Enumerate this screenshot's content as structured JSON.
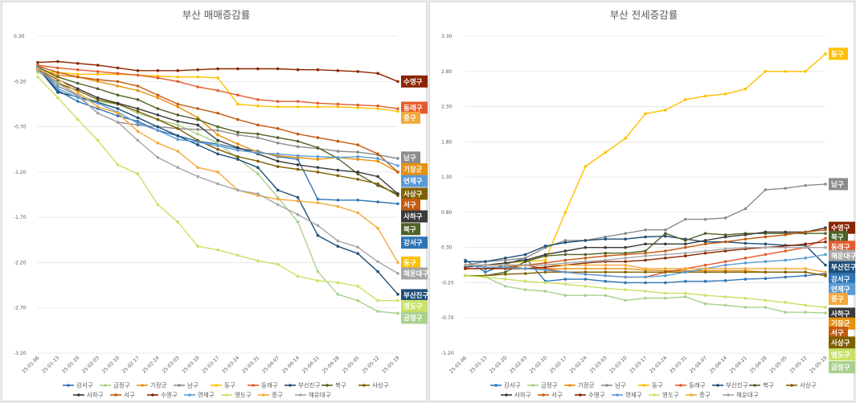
{
  "weeks": [
    "25-01-06",
    "25-01-13",
    "25-01-20",
    "25-02-03",
    "25-02-10",
    "25-02-17",
    "25-02-24",
    "25-03-03",
    "25-03-10",
    "25-03-17",
    "25-03-24",
    "25-03-31",
    "25-04-07",
    "25-04-14",
    "25-04-21",
    "25-04-28",
    "25-05-05",
    "25-05-12",
    "25-05-19"
  ],
  "legend_order": [
    "강서구",
    "금정구",
    "기장군",
    "남구",
    "동구",
    "동래구",
    "부산진구",
    "북구",
    "사상구",
    "사하구",
    "서구",
    "수영구",
    "연제구",
    "영도구",
    "중구",
    "해운대구"
  ],
  "colors": {
    "강서구": "#2e75b6",
    "금정구": "#a9d18e",
    "기장군": "#e8900c",
    "남구": "#8c8c8c",
    "동구": "#ffc000",
    "동래구": "#e35b2b",
    "부산진구": "#1f4e79",
    "북구": "#4f6228",
    "사상구": "#7f6000",
    "사하구": "#3a3a3a",
    "서구": "#c55a11",
    "수영구": "#8b2500",
    "연제구": "#5b9bd5",
    "영도구": "#c9e265",
    "중구": "#f4a93b",
    "해운대구": "#a6a6a6"
  },
  "chart_data": [
    {
      "type": "line",
      "title": "부산 매매증감률",
      "ylim": [
        -3.2,
        0.3
      ],
      "yticks": [
        "0.30",
        "-0.20",
        "-0.70",
        "-1.20",
        "-1.70",
        "-2.20",
        "-2.70",
        "-3.20"
      ],
      "grid": true,
      "legend_position": "bottom",
      "series": [
        {
          "name": "강서구",
          "values": [
            -0.05,
            -0.3,
            -0.42,
            -0.5,
            -0.58,
            -0.64,
            -0.74,
            -0.8,
            -0.86,
            -0.89,
            -0.94,
            -0.97,
            -1.03,
            -1.06,
            -1.5,
            -1.51,
            -1.51,
            -1.53,
            -1.55
          ]
        },
        {
          "name": "금정구",
          "values": [
            -0.1,
            -0.2,
            -0.35,
            -0.42,
            -0.45,
            -0.55,
            -0.62,
            -0.68,
            -0.78,
            -0.88,
            -1.05,
            -1.22,
            -1.48,
            -1.75,
            -2.3,
            -2.55,
            -2.62,
            -2.74,
            -2.76
          ]
        },
        {
          "name": "기장군",
          "values": [
            -0.05,
            -0.13,
            -0.15,
            -0.2,
            -0.25,
            -0.3,
            -0.38,
            -0.48,
            -0.6,
            -0.79,
            -0.89,
            -0.98,
            -1.02,
            -1.04,
            -1.06,
            -1.04,
            -1.06,
            -1.08,
            -1.2
          ]
        },
        {
          "name": "남구",
          "values": [
            -0.06,
            -0.25,
            -0.36,
            -0.55,
            -0.65,
            -0.68,
            -0.7,
            -0.72,
            -0.73,
            -0.74,
            -0.79,
            -0.82,
            -0.88,
            -0.92,
            -0.94,
            -0.97,
            -0.98,
            -1.01,
            -1.05
          ]
        },
        {
          "name": "동구",
          "values": [
            -0.08,
            -0.1,
            -0.12,
            -0.12,
            -0.12,
            -0.13,
            -0.14,
            -0.15,
            -0.15,
            -0.16,
            -0.45,
            -0.47,
            -0.48,
            -0.48,
            -0.48,
            -0.48,
            -0.49,
            -0.5,
            -0.53
          ]
        },
        {
          "name": "동래구",
          "values": [
            -0.02,
            -0.05,
            -0.07,
            -0.09,
            -0.11,
            -0.13,
            -0.16,
            -0.2,
            -0.26,
            -0.3,
            -0.35,
            -0.4,
            -0.42,
            -0.42,
            -0.44,
            -0.45,
            -0.46,
            -0.47,
            -0.5
          ]
        },
        {
          "name": "부산진구",
          "values": [
            -0.05,
            -0.32,
            -0.37,
            -0.43,
            -0.5,
            -0.6,
            -0.7,
            -0.8,
            -0.9,
            -1.0,
            -1.06,
            -1.15,
            -1.4,
            -1.48,
            -1.9,
            -2.02,
            -2.1,
            -2.3,
            -2.55
          ]
        },
        {
          "name": "북구",
          "values": [
            -0.04,
            -0.15,
            -0.22,
            -0.28,
            -0.35,
            -0.4,
            -0.5,
            -0.57,
            -0.62,
            -0.7,
            -0.76,
            -0.78,
            -0.82,
            -0.86,
            -0.93,
            -1.05,
            -1.22,
            -1.35,
            -1.44
          ]
        },
        {
          "name": "사상구",
          "values": [
            -0.06,
            -0.22,
            -0.3,
            -0.4,
            -0.45,
            -0.53,
            -0.62,
            -0.72,
            -0.85,
            -0.95,
            -1.03,
            -1.08,
            -1.14,
            -1.17,
            -1.2,
            -1.24,
            -1.28,
            -1.33,
            -1.46
          ]
        },
        {
          "name": "사하구",
          "values": [
            -0.06,
            -0.18,
            -0.28,
            -0.38,
            -0.44,
            -0.5,
            -0.57,
            -0.64,
            -0.68,
            -0.85,
            -0.93,
            -1.0,
            -1.08,
            -1.12,
            -1.15,
            -1.18,
            -1.2,
            -1.25,
            -1.44
          ]
        },
        {
          "name": "서구",
          "values": [
            -0.03,
            -0.1,
            -0.15,
            -0.18,
            -0.2,
            -0.25,
            -0.35,
            -0.45,
            -0.5,
            -0.55,
            -0.62,
            -0.68,
            -0.72,
            -0.78,
            -0.82,
            -0.86,
            -0.9,
            -1.0,
            -1.2
          ]
        },
        {
          "name": "수영구",
          "values": [
            0.01,
            0.02,
            0.0,
            -0.02,
            -0.05,
            -0.08,
            -0.08,
            -0.08,
            -0.07,
            -0.06,
            -0.06,
            -0.06,
            -0.06,
            -0.07,
            -0.07,
            -0.08,
            -0.09,
            -0.11,
            -0.2
          ]
        },
        {
          "name": "연제구",
          "values": [
            -0.04,
            -0.28,
            -0.38,
            -0.44,
            -0.54,
            -0.66,
            -0.74,
            -0.84,
            -0.87,
            -0.91,
            -0.96,
            -0.99,
            -1.0,
            -1.02,
            -1.03,
            -1.04,
            -1.03,
            -1.05,
            -1.13
          ]
        },
        {
          "name": "영도구",
          "values": [
            -0.15,
            -0.38,
            -0.62,
            -0.85,
            -1.12,
            -1.22,
            -1.56,
            -1.75,
            -2.02,
            -2.06,
            -2.12,
            -2.18,
            -2.22,
            -2.35,
            -2.4,
            -2.42,
            -2.46,
            -2.62,
            -2.62
          ]
        },
        {
          "name": "중구",
          "values": [
            -0.06,
            -0.17,
            -0.32,
            -0.48,
            -0.55,
            -0.75,
            -0.88,
            -0.97,
            -1.15,
            -1.2,
            -1.4,
            -1.46,
            -1.5,
            -1.52,
            -1.54,
            -1.58,
            -1.65,
            -1.82,
            -2.2
          ]
        },
        {
          "name": "해운대구",
          "values": [
            -0.08,
            -0.22,
            -0.35,
            -0.55,
            -0.65,
            -0.85,
            -1.04,
            -1.15,
            -1.25,
            -1.33,
            -1.4,
            -1.44,
            -1.56,
            -1.67,
            -1.79,
            -1.96,
            -2.03,
            -2.19,
            -2.32
          ]
        }
      ],
      "end_labels": [
        {
          "name": "수영구",
          "y": -0.2
        },
        {
          "name": "동래구",
          "y": -0.49
        },
        {
          "name": "중구",
          "y": -0.6
        },
        {
          "name": "남구",
          "y": -1.04
        },
        {
          "name": "기장군",
          "y": -1.17
        },
        {
          "name": "연제구",
          "y": -1.3
        },
        {
          "name": "사상구",
          "y": -1.44
        },
        {
          "name": "서구",
          "y": -1.56
        },
        {
          "name": "사하구",
          "y": -1.69
        },
        {
          "name": "북구",
          "y": -1.83
        },
        {
          "name": "강서구",
          "y": -1.98
        },
        {
          "name": "동구",
          "y": -2.2
        },
        {
          "name": "해운대구",
          "y": -2.32
        },
        {
          "name": "부산진구",
          "y": -2.56
        },
        {
          "name": "영도구",
          "y": -2.68
        },
        {
          "name": "금정구",
          "y": -2.81
        }
      ]
    },
    {
      "type": "line",
      "title": "부산 전세증감률",
      "ylim": [
        -1.2,
        3.3
      ],
      "yticks": [
        "3.30",
        "2.80",
        "2.30",
        "1.80",
        "1.30",
        "0.80",
        "0.30",
        "-0.20",
        "-0.70",
        "-1.20"
      ],
      "grid": true,
      "legend_position": "bottom",
      "series": [
        {
          "name": "강서구",
          "values": [
            0.12,
            -0.05,
            0.06,
            0.15,
            -0.18,
            -0.15,
            -0.15,
            -0.18,
            -0.2,
            -0.2,
            -0.2,
            -0.18,
            -0.18,
            -0.17,
            -0.15,
            -0.14,
            -0.12,
            -0.1,
            -0.07
          ]
        },
        {
          "name": "금정구",
          "values": [
            -0.1,
            -0.12,
            -0.25,
            -0.3,
            -0.32,
            -0.38,
            -0.38,
            -0.38,
            -0.45,
            -0.42,
            -0.42,
            -0.4,
            -0.5,
            -0.52,
            -0.55,
            -0.55,
            -0.62,
            -0.62,
            -0.63
          ]
        },
        {
          "name": "기장군",
          "values": [
            0.05,
            0.05,
            0.05,
            0.0,
            0.0,
            0.0,
            0.0,
            0.0,
            0.0,
            -0.02,
            -0.03,
            -0.03,
            -0.03,
            -0.03,
            -0.03,
            -0.05,
            -0.05,
            -0.05,
            -0.1
          ]
        },
        {
          "name": "남구",
          "values": [
            0.05,
            0.1,
            0.12,
            0.15,
            0.3,
            0.4,
            0.4,
            0.45,
            0.5,
            0.55,
            0.55,
            0.7,
            0.7,
            0.72,
            0.85,
            1.12,
            1.14,
            1.18,
            1.2
          ]
        },
        {
          "name": "동구",
          "values": [
            0.05,
            0.05,
            0.08,
            0.1,
            0.12,
            0.8,
            1.45,
            1.65,
            1.85,
            2.2,
            2.25,
            2.4,
            2.45,
            2.48,
            2.55,
            2.8,
            2.8,
            2.8,
            3.05
          ]
        },
        {
          "name": "동래구",
          "values": [
            0.05,
            0.05,
            0.05,
            0.05,
            0.0,
            -0.05,
            -0.08,
            -0.1,
            -0.12,
            -0.12,
            -0.05,
            0.0,
            0.05,
            0.1,
            0.15,
            0.2,
            0.25,
            0.3,
            0.43
          ]
        },
        {
          "name": "부산진구",
          "values": [
            0.1,
            0.1,
            0.15,
            0.2,
            0.32,
            0.37,
            0.4,
            0.42,
            0.42,
            0.45,
            0.46,
            0.42,
            0.38,
            0.38,
            0.36,
            0.35,
            0.33,
            0.33,
            0.05
          ]
        },
        {
          "name": "북구",
          "values": [
            -0.1,
            -0.1,
            -0.05,
            0.1,
            0.18,
            0.2,
            0.2,
            0.22,
            0.22,
            0.25,
            0.5,
            0.4,
            0.5,
            0.48,
            0.5,
            0.5,
            0.5,
            0.5,
            0.5
          ]
        },
        {
          "name": "사상구",
          "values": [
            -0.1,
            -0.1,
            -0.08,
            -0.07,
            -0.05,
            -0.05,
            -0.05,
            -0.05,
            -0.05,
            -0.05,
            -0.05,
            -0.05,
            -0.05,
            -0.05,
            -0.05,
            -0.05,
            -0.05,
            -0.05,
            -0.1
          ]
        },
        {
          "name": "사하구",
          "values": [
            0.02,
            0.05,
            0.08,
            0.12,
            0.2,
            0.25,
            0.3,
            0.3,
            0.3,
            0.35,
            0.35,
            0.35,
            0.4,
            0.45,
            0.48,
            0.52,
            0.52,
            0.52,
            0.58
          ]
        },
        {
          "name": "서구",
          "values": [
            0.0,
            0.0,
            0.02,
            0.05,
            0.08,
            0.12,
            0.15,
            0.18,
            0.2,
            0.22,
            0.25,
            0.3,
            0.35,
            0.38,
            0.42,
            0.45,
            0.48,
            0.52,
            0.55
          ]
        },
        {
          "name": "수영구",
          "values": [
            0.0,
            0.0,
            0.0,
            0.0,
            0.02,
            0.05,
            0.08,
            0.1,
            0.1,
            0.12,
            0.15,
            0.18,
            0.22,
            0.25,
            0.28,
            0.3,
            0.32,
            0.35,
            0.38
          ]
        },
        {
          "name": "연제구",
          "values": [
            0.05,
            0.02,
            0.02,
            0.0,
            -0.02,
            -0.05,
            -0.08,
            -0.1,
            -0.12,
            -0.12,
            -0.1,
            -0.05,
            0.0,
            0.05,
            0.08,
            0.1,
            0.12,
            0.15,
            0.2
          ]
        },
        {
          "name": "영도구",
          "values": [
            -0.1,
            -0.12,
            -0.15,
            -0.18,
            -0.2,
            -0.22,
            -0.25,
            -0.28,
            -0.3,
            -0.32,
            -0.35,
            -0.35,
            -0.38,
            -0.4,
            -0.42,
            -0.45,
            -0.48,
            -0.52,
            -0.55
          ]
        },
        {
          "name": "중구",
          "values": [
            0.05,
            0.05,
            0.05,
            0.05,
            0.05,
            0.05,
            0.05,
            0.05,
            0.05,
            0.0,
            0.0,
            0.0,
            0.0,
            0.0,
            0.0,
            0.0,
            0.0,
            0.0,
            -0.05
          ]
        },
        {
          "name": "해운대구",
          "values": [
            0.05,
            0.05,
            0.05,
            0.05,
            0.05,
            0.08,
            0.1,
            0.12,
            0.15,
            0.18,
            0.2,
            0.22,
            0.25,
            0.28,
            0.3,
            0.3,
            0.3,
            0.3,
            0.3
          ]
        }
      ],
      "end_labels": [
        {
          "name": "동구",
          "y": 3.05
        },
        {
          "name": "남구",
          "y": 1.2
        },
        {
          "name": "수영구",
          "y": 0.58
        },
        {
          "name": "북구",
          "y": 0.45
        },
        {
          "name": "동래구",
          "y": 0.31
        },
        {
          "name": "해운대구",
          "y": 0.18
        },
        {
          "name": "부산진구",
          "y": 0.02
        },
        {
          "name": "강서구",
          "y": -0.15
        },
        {
          "name": "연제구",
          "y": -0.29
        },
        {
          "name": "중구",
          "y": -0.43
        },
        {
          "name": "사하구",
          "y": -0.64
        },
        {
          "name": "기장군",
          "y": -0.78
        },
        {
          "name": "서구",
          "y": -0.91
        },
        {
          "name": "사상구",
          "y": -1.05
        },
        {
          "name": "영도구",
          "y": -1.22
        },
        {
          "name": "금정구",
          "y": -1.4
        }
      ]
    }
  ]
}
